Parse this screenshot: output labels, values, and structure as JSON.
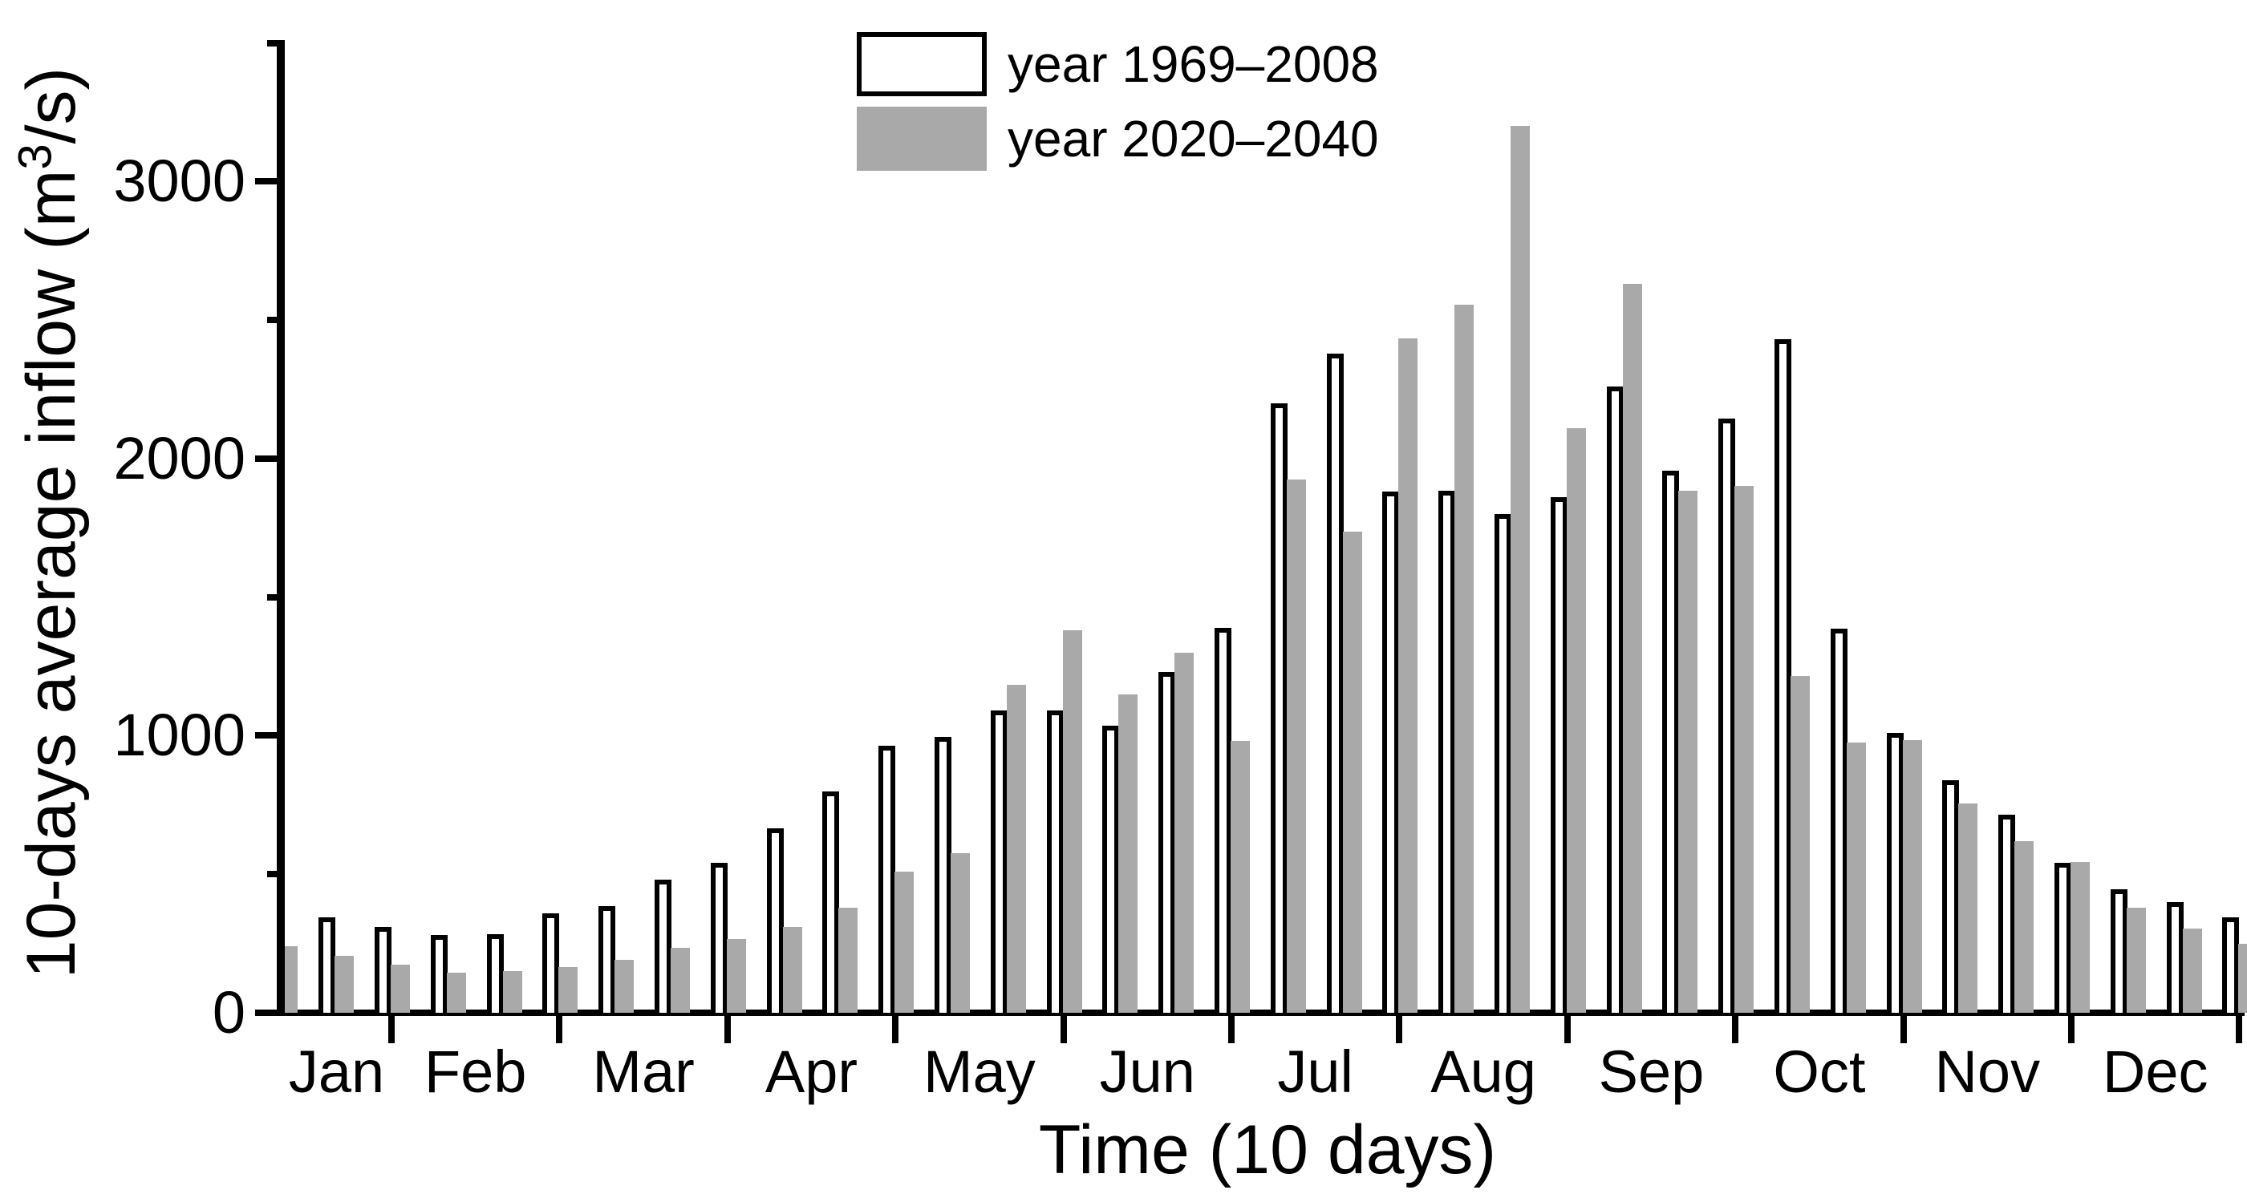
{
  "chart_data": {
    "type": "bar",
    "title": "",
    "ylabel": "10-days average inflow (m³/s)",
    "ylabel_parts": {
      "main": "10-days average inflow (m",
      "sup": "3",
      "end": "/s)"
    },
    "xlabel": "Time (10 days)",
    "months": [
      "Jan",
      "Feb",
      "Mar",
      "Apr",
      "May",
      "Jun",
      "Jul",
      "Aug",
      "Sep",
      "Oct",
      "Nov",
      "Dec"
    ],
    "periods_per_month": 3,
    "ylim": [
      0,
      3500
    ],
    "major_ticks": [
      0,
      1000,
      2000,
      3000
    ],
    "minor_ticks": [
      500,
      1500,
      2500,
      3500
    ],
    "grid": false,
    "legend_position": "top-center",
    "colors": {
      "series1_fill": "#ffffff",
      "series1_border": "#000000",
      "series2_fill": "#a9a9a9",
      "axis": "#000000"
    },
    "series": [
      {
        "name": "year 1969–2008",
        "values": [
          null,
          345,
          310,
          280,
          285,
          360,
          385,
          480,
          540,
          665,
          800,
          965,
          995,
          1090,
          1090,
          1035,
          1230,
          1390,
          2200,
          2380,
          1880,
          1885,
          1800,
          1860,
          2260,
          1955,
          2145,
          2430,
          1385,
          1010,
          840,
          715,
          540,
          445,
          400,
          345
        ]
      },
      {
        "name": "year 2020–2040",
        "values": [
          240,
          205,
          175,
          145,
          150,
          165,
          190,
          235,
          265,
          310,
          380,
          510,
          575,
          1185,
          1380,
          1150,
          1300,
          980,
          1925,
          1735,
          2435,
          2555,
          3200,
          2110,
          2630,
          1885,
          1900,
          1215,
          975,
          985,
          755,
          620,
          545,
          380,
          305,
          250
        ]
      }
    ]
  }
}
